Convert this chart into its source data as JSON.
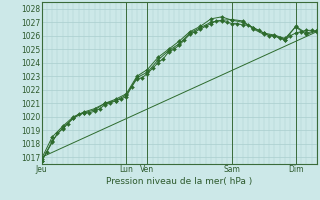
{
  "title": "",
  "xlabel": "Pression niveau de la mer( hPa )",
  "bg_color": "#cce8e8",
  "grid_color": "#aacece",
  "line_color": "#2d6b2d",
  "ylim": [
    1016.5,
    1028.5
  ],
  "yticks": [
    1017,
    1018,
    1019,
    1020,
    1021,
    1022,
    1023,
    1024,
    1025,
    1026,
    1027,
    1028
  ],
  "x_day_labels": [
    "Jeu",
    "Lun",
    "Ven",
    "Sam",
    "Dim"
  ],
  "x_day_positions": [
    0,
    4,
    5,
    9,
    12
  ],
  "x_separator_positions": [
    0,
    4,
    5,
    9,
    12
  ],
  "xlim": [
    0,
    13
  ],
  "series1": {
    "x": [
      0,
      0.25,
      0.5,
      0.75,
      1.0,
      1.25,
      1.5,
      1.75,
      2.0,
      2.25,
      2.5,
      2.75,
      3.0,
      3.25,
      3.5,
      3.75,
      4.0,
      4.25,
      4.5,
      4.75,
      5.0,
      5.25,
      5.5,
      5.75,
      6.0,
      6.25,
      6.5,
      6.75,
      7.0,
      7.25,
      7.5,
      7.75,
      8.0,
      8.25,
      8.5,
      8.75,
      9.0,
      9.25,
      9.5,
      9.75,
      10.0,
      10.25,
      10.5,
      10.75,
      11.0,
      11.25,
      11.5,
      11.75,
      12.0,
      12.25,
      12.5,
      12.75,
      13.0
    ],
    "y": [
      1016.7,
      1017.4,
      1018.1,
      1018.8,
      1019.1,
      1019.5,
      1019.9,
      1020.2,
      1020.3,
      1020.3,
      1020.4,
      1020.6,
      1020.9,
      1021.0,
      1021.2,
      1021.3,
      1021.5,
      1022.2,
      1022.8,
      1022.9,
      1023.2,
      1023.6,
      1024.0,
      1024.3,
      1024.8,
      1025.0,
      1025.3,
      1025.7,
      1026.1,
      1026.3,
      1026.5,
      1026.7,
      1026.9,
      1027.1,
      1027.1,
      1027.0,
      1026.9,
      1026.9,
      1026.8,
      1026.8,
      1026.6,
      1026.4,
      1026.2,
      1026.0,
      1026.0,
      1025.8,
      1025.7,
      1026.0,
      1026.2,
      1026.3,
      1026.4,
      1026.4,
      1026.3
    ]
  },
  "series2": {
    "x": [
      0,
      0.5,
      1.0,
      1.5,
      2.0,
      2.5,
      3.0,
      3.5,
      4.0,
      4.5,
      5.0,
      5.5,
      6.0,
      6.5,
      7.0,
      7.5,
      8.0,
      8.5,
      9.0,
      9.5,
      10.0,
      10.5,
      11.0,
      11.5,
      12.0,
      12.5,
      13.0
    ],
    "y": [
      1016.7,
      1018.2,
      1019.2,
      1019.9,
      1020.3,
      1020.5,
      1021.0,
      1021.2,
      1021.6,
      1022.9,
      1023.3,
      1024.2,
      1024.9,
      1025.4,
      1026.2,
      1026.6,
      1027.0,
      1027.15,
      1027.2,
      1027.1,
      1026.5,
      1026.1,
      1026.0,
      1025.7,
      1026.7,
      1026.2,
      1026.4
    ]
  },
  "series3": {
    "x": [
      0,
      0.5,
      1.0,
      1.5,
      2.0,
      2.5,
      3.0,
      3.5,
      4.0,
      4.5,
      5.0,
      5.5,
      6.0,
      6.5,
      7.0,
      7.5,
      8.0,
      8.5,
      9.0,
      9.5,
      10.0,
      10.5,
      11.0,
      11.5,
      12.0,
      12.5,
      13.0
    ],
    "y": [
      1016.9,
      1018.5,
      1019.3,
      1020.0,
      1020.35,
      1020.6,
      1021.0,
      1021.3,
      1021.7,
      1023.0,
      1023.5,
      1024.4,
      1025.0,
      1025.6,
      1026.3,
      1026.7,
      1027.25,
      1027.4,
      1027.15,
      1027.0,
      1026.6,
      1026.2,
      1026.05,
      1025.8,
      1026.65,
      1026.1,
      1026.35
    ]
  },
  "trend_x": [
    0,
    13.0
  ],
  "trend_y": [
    1017.0,
    1026.3
  ]
}
